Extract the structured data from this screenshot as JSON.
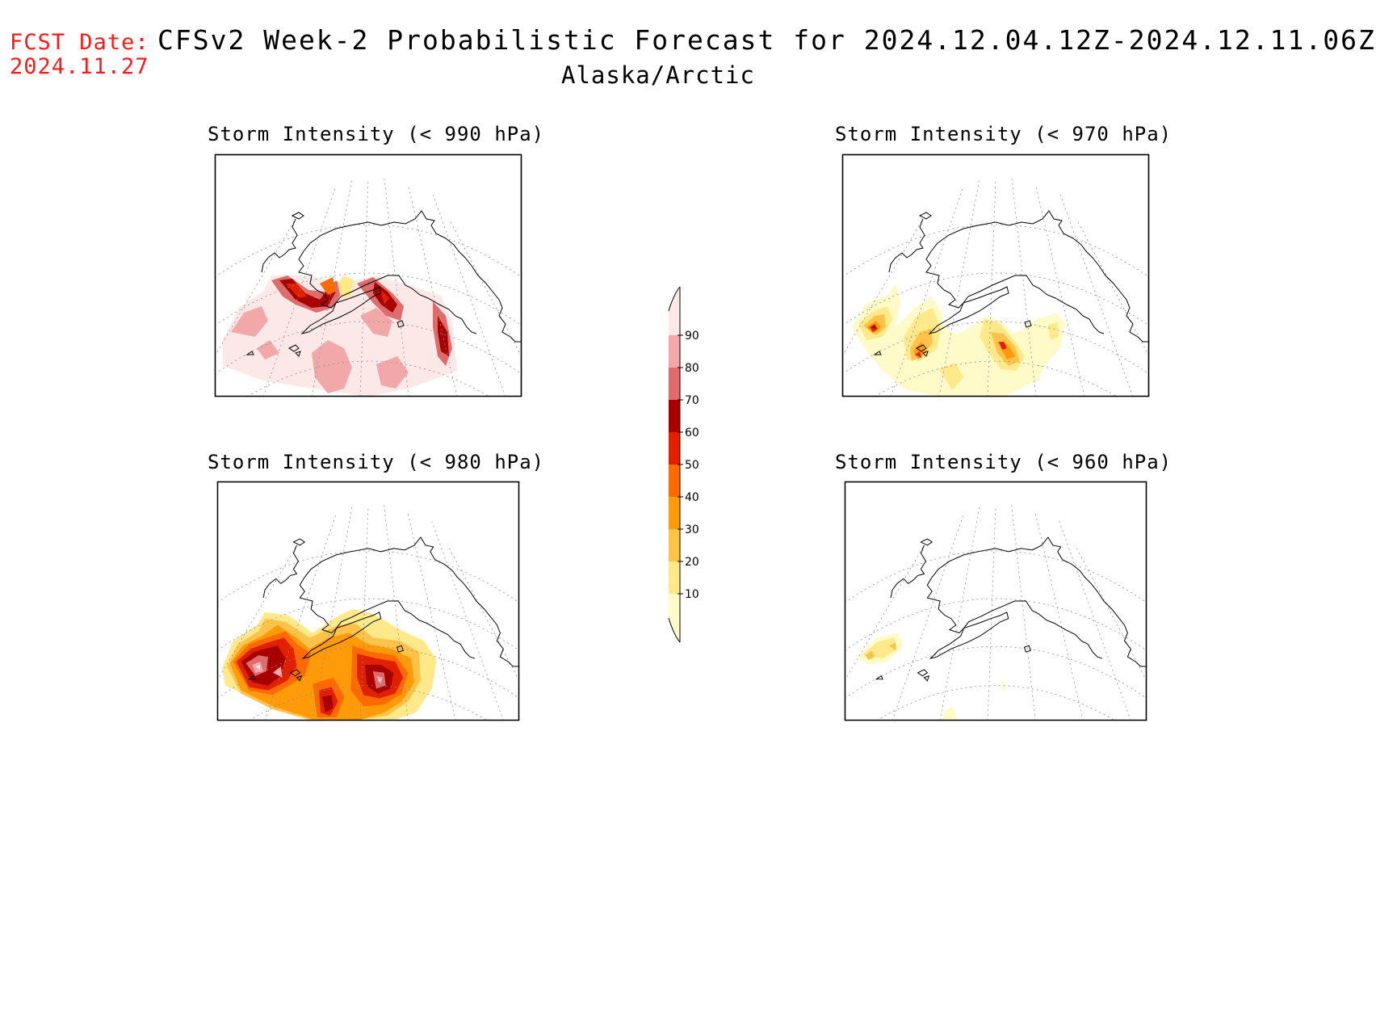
{
  "header": {
    "fcst_label": "FCST Date:",
    "fcst_date": "2024.11.27",
    "title": "CFSv2 Week-2 Probabilistic Forecast for 2024.12.04.12Z-2024.12.11.06Z",
    "subtitle": "Alaska/Arctic"
  },
  "panels": [
    {
      "id": "p990",
      "title": "Storm Intensity (< 990 hPa)"
    },
    {
      "id": "p970",
      "title": "Storm Intensity (< 970 hPa)"
    },
    {
      "id": "p980",
      "title": "Storm Intensity (< 980 hPa)"
    },
    {
      "id": "p960",
      "title": "Storm Intensity (< 960 hPa)"
    }
  ],
  "colorbar": {
    "levels": [
      "10",
      "20",
      "30",
      "40",
      "50",
      "60",
      "70",
      "80",
      "90"
    ],
    "colors": [
      "#fffbc8",
      "#ffe98a",
      "#ffc34a",
      "#ff9a08",
      "#ff6a00",
      "#e02000",
      "#a80000",
      "#de6c6c",
      "#f2a8a8",
      "#fde8e8"
    ]
  },
  "colors": {
    "fcst_text": "#ff1a1a",
    "coastline": "#000000",
    "graticule": "#8c8c8c"
  }
}
